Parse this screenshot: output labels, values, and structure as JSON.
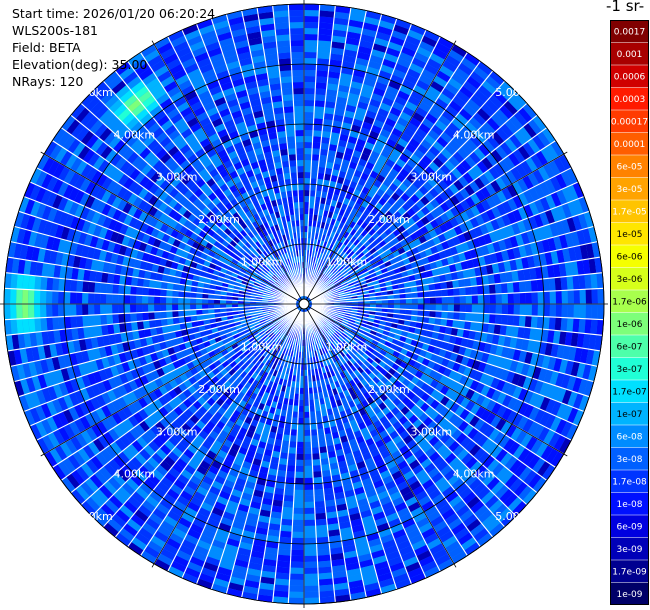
{
  "header": {
    "start_time": "Start time: 2026/01/20 06:20:24",
    "device": "WLS200s-181",
    "field": "Field: BETA",
    "elevation": "Elevation(deg): 35.00",
    "nrays": "NRays: 120"
  },
  "colorbar": {
    "title": "-1 sr-",
    "labels": [
      "0.0017",
      "0.001",
      "0.0006",
      "0.0003",
      "0.00017",
      "0.0001",
      "6e-05",
      "3e-05",
      "1.7e-05",
      "1e-05",
      "6e-06",
      "3e-06",
      "1.7e-06",
      "1e-06",
      "6e-07",
      "3e-07",
      "1.7e-07",
      "1e-07",
      "6e-08",
      "3e-08",
      "1.7e-08",
      "1e-08",
      "6e-09",
      "3e-09",
      "1.7e-09",
      "1e-09"
    ],
    "colors": [
      "#800000",
      "#a80000",
      "#d00000",
      "#ff1a00",
      "#ff3b00",
      "#ff5e00",
      "#ff8200",
      "#ffa300",
      "#ffc400",
      "#ffe600",
      "#f5ff00",
      "#d6ff1a",
      "#a8ff4d",
      "#7dff7a",
      "#4dffaa",
      "#20ffd6",
      "#00e0ff",
      "#00b4ff",
      "#008cff",
      "#0060ff",
      "#0034ff",
      "#0010ff",
      "#0000e0",
      "#0000b8",
      "#000090",
      "#000068"
    ]
  },
  "chart_data": {
    "type": "heatmap",
    "projection": "polar (PPI scan)",
    "field": "BETA",
    "elevation_deg": 35.0,
    "nrays": 120,
    "range_unit": "km",
    "range_rings_km": [
      1,
      2,
      3,
      4,
      5
    ],
    "ring_labels": [
      "1.00km",
      "2.00km",
      "3.00km",
      "4.00km",
      "5.00km"
    ],
    "max_range_km": 5.0,
    "value_range": [
      1e-09,
      0.0017
    ],
    "scale": "log",
    "dominant_values": "1e-08 to 1e-07 (blue)",
    "local_maxima": [
      {
        "azimuth_deg": 320,
        "range_km": 4.3,
        "approx_value": 1e-06
      },
      {
        "azimuth_deg": 270,
        "range_km": 4.6,
        "approx_value": 1e-06
      }
    ]
  }
}
